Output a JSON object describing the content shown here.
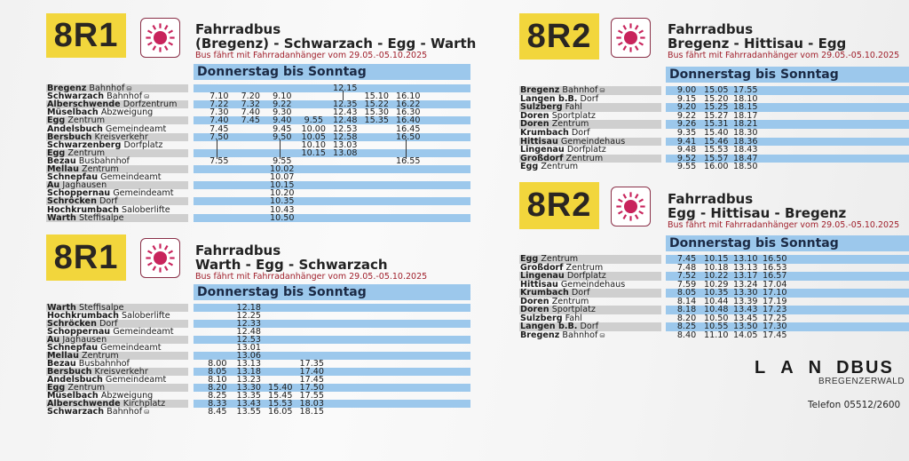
{
  "colors": {
    "badge": "#f2d63c",
    "row_blue": "#9cc8ec",
    "row_gray": "#cfcfcf",
    "subtitle_red": "#a0202c",
    "icon_sun": "#c8245c"
  },
  "sections": [
    {
      "badge": "8R1",
      "icon": "sun-icon",
      "title": "Fahrradbus",
      "route": "(Bregenz) - Schwarzach - Egg - Warth",
      "note": "Bus fährt mit Fahrradanhänger vom 29.05.-05.10.2025",
      "days": "Donnerstag bis Sonntag",
      "rows": [
        {
          "b": "Bregenz",
          "n": "Bahnhof",
          "bike": true,
          "t": [
            "",
            "",
            "",
            "",
            "12.15",
            "",
            ""
          ]
        },
        {
          "b": "Schwarzach",
          "n": "Bahnhof",
          "bike": true,
          "t": [
            "7.10",
            "7.20",
            "9.10",
            "",
            "|",
            "15.10",
            "16.10"
          ]
        },
        {
          "b": "Alberschwende",
          "n": "Dorfzentrum",
          "t": [
            "7.22",
            "7.32",
            "9.22",
            "",
            "12.35",
            "15.22",
            "16.22"
          ]
        },
        {
          "b": "Müselbach",
          "n": "Abzweigung",
          "t": [
            "7.30",
            "7.40",
            "9.30",
            "",
            "12.43",
            "15.30",
            "16.30"
          ]
        },
        {
          "b": "Egg",
          "n": "Zentrum",
          "t": [
            "7.40",
            "7.45",
            "9.40",
            "9.55",
            "12.48",
            "15.35",
            "16.40"
          ]
        },
        {
          "b": "Andelsbuch",
          "n": "Gemeindeamt",
          "t": [
            "7.45",
            "",
            "9.45",
            "10.00",
            "12.53",
            "",
            "16.45"
          ]
        },
        {
          "b": "Bersbuch",
          "n": "Kreisverkehr",
          "t": [
            "7.50",
            "",
            "9.50",
            "10.05",
            "12.58",
            "",
            "16.50"
          ]
        },
        {
          "b": "Schwarzenberg",
          "n": "Dorfplatz",
          "t": [
            "|",
            "",
            "|",
            "10.10",
            "13.03",
            "",
            "|"
          ]
        },
        {
          "b": "Egg",
          "n": "Zentrum",
          "t": [
            "|",
            "",
            "|",
            "10.15",
            "13.08",
            "",
            "|"
          ]
        },
        {
          "b": "Bezau",
          "n": "Busbahnhof",
          "t": [
            "7.55",
            "",
            "9.55",
            "",
            "",
            "",
            "16.55"
          ]
        },
        {
          "b": "Mellau",
          "n": "Zentrum",
          "t": [
            "",
            "",
            "10.02",
            "",
            "",
            "",
            ""
          ]
        },
        {
          "b": "Schnepfau",
          "n": "Gemeindeamt",
          "t": [
            "",
            "",
            "10.07",
            "",
            "",
            "",
            ""
          ]
        },
        {
          "b": "Au",
          "n": "Jaghausen",
          "t": [
            "",
            "",
            "10.15",
            "",
            "",
            "",
            ""
          ]
        },
        {
          "b": "Schoppernau",
          "n": "Gemeindeamt",
          "t": [
            "",
            "",
            "10.20",
            "",
            "",
            "",
            ""
          ]
        },
        {
          "b": "Schröcken",
          "n": "Dorf",
          "t": [
            "",
            "",
            "10.35",
            "",
            "",
            "",
            ""
          ]
        },
        {
          "b": "Hochkrumbach",
          "n": "Saloberlifte",
          "t": [
            "",
            "",
            "10.43",
            "",
            "",
            "",
            ""
          ]
        },
        {
          "b": "Warth",
          "n": "Steffisalpe",
          "t": [
            "",
            "",
            "10.50",
            "",
            "",
            "",
            ""
          ]
        }
      ]
    },
    {
      "badge": "8R1",
      "icon": "sun-icon",
      "title": "Fahrradbus",
      "route": "Warth - Egg - Schwarzach",
      "note": "Bus fährt mit Fahrradanhänger vom 29.05.-05.10.2025",
      "days": "Donnerstag bis Sonntag",
      "rows": [
        {
          "b": "Warth",
          "n": "Steffisalpe",
          "t": [
            "",
            "12.18",
            "",
            ""
          ]
        },
        {
          "b": "Hochkrumbach",
          "n": "Saloberlifte",
          "t": [
            "",
            "12.25",
            "",
            ""
          ]
        },
        {
          "b": "Schröcken",
          "n": "Dorf",
          "t": [
            "",
            "12.33",
            "",
            ""
          ]
        },
        {
          "b": "Schoppernau",
          "n": "Gemeindeamt",
          "t": [
            "",
            "12.48",
            "",
            ""
          ]
        },
        {
          "b": "Au",
          "n": "Jaghausen",
          "t": [
            "",
            "12.53",
            "",
            ""
          ]
        },
        {
          "b": "Schnepfau",
          "n": "Gemeindeamt",
          "t": [
            "",
            "13.01",
            "",
            ""
          ]
        },
        {
          "b": "Mellau",
          "n": "Zentrum",
          "t": [
            "",
            "13.06",
            "",
            ""
          ]
        },
        {
          "b": "Bezau",
          "n": "Busbahnhof",
          "t": [
            "8.00",
            "13.13",
            "",
            "17.35"
          ]
        },
        {
          "b": "Bersbuch",
          "n": "Kreisverkehr",
          "t": [
            "8.05",
            "13.18",
            "",
            "17.40"
          ]
        },
        {
          "b": "Andelsbuch",
          "n": "Gemeindeamt",
          "t": [
            "8.10",
            "13.23",
            "",
            "17.45"
          ]
        },
        {
          "b": "Egg",
          "n": "Zentrum",
          "t": [
            "8.20",
            "13.30",
            "15.40",
            "17.50"
          ]
        },
        {
          "b": "Müselbach",
          "n": "Abzweigung",
          "t": [
            "8.25",
            "13.35",
            "15.45",
            "17.55"
          ]
        },
        {
          "b": "Alberschwende",
          "n": "Kirchplatz",
          "t": [
            "8.33",
            "13.43",
            "15.53",
            "18.03"
          ]
        },
        {
          "b": "Schwarzach",
          "n": "Bahnhof",
          "bike": true,
          "t": [
            "8.45",
            "13.55",
            "16.05",
            "18.15"
          ]
        }
      ]
    },
    {
      "badge": "8R2",
      "icon": "sun-icon",
      "title": "Fahrradbus",
      "route": "Bregenz - Hittisau - Egg",
      "note": "Bus fährt mit Fahrradanhänger vom 29.05.-05.10.2025",
      "days": "Donnerstag bis Sonntag",
      "rows": [
        {
          "b": "Bregenz",
          "n": "Bahnhof",
          "bike": true,
          "t": [
            "9.00",
            "15.05",
            "17.55"
          ]
        },
        {
          "b": "Langen b.B.",
          "n": "Dorf",
          "t": [
            "9.15",
            "15.20",
            "18.10"
          ]
        },
        {
          "b": "Sulzberg",
          "n": "Fahl",
          "t": [
            "9.20",
            "15.25",
            "18.15"
          ]
        },
        {
          "b": "Doren",
          "n": "Sportplatz",
          "t": [
            "9.22",
            "15.27",
            "18.17"
          ]
        },
        {
          "b": "Doren",
          "n": "Zentrum",
          "t": [
            "9.26",
            "15.31",
            "18.21"
          ]
        },
        {
          "b": "Krumbach",
          "n": "Dorf",
          "t": [
            "9.35",
            "15.40",
            "18.30"
          ]
        },
        {
          "b": "Hittisau",
          "n": "Gemeindehaus",
          "t": [
            "9.41",
            "15.46",
            "18.36"
          ]
        },
        {
          "b": "Lingenau",
          "n": "Dorfplatz",
          "t": [
            "9.48",
            "15.53",
            "18.43"
          ]
        },
        {
          "b": "Großdorf",
          "n": "Zentrum",
          "t": [
            "9.52",
            "15.57",
            "18.47"
          ]
        },
        {
          "b": "Egg",
          "n": "Zentrum",
          "t": [
            "9.55",
            "16.00",
            "18.50"
          ]
        }
      ]
    },
    {
      "badge": "8R2",
      "icon": "sun-icon",
      "title": "Fahrradbus",
      "route": "Egg - Hittisau - Bregenz",
      "note": "Bus fährt mit Fahrradanhänger vom 29.05.-05.10.2025",
      "days": "Donnerstag bis Sonntag",
      "rows": [
        {
          "b": "Egg",
          "n": "Zentrum",
          "t": [
            "7.45",
            "10.15",
            "13.10",
            "16.50"
          ]
        },
        {
          "b": "Großdorf",
          "n": "Zentrum",
          "t": [
            "7.48",
            "10.18",
            "13.13",
            "16.53"
          ]
        },
        {
          "b": "Lingenau",
          "n": "Dorfplatz",
          "t": [
            "7.52",
            "10.22",
            "13.17",
            "16.57"
          ]
        },
        {
          "b": "Hittisau",
          "n": "Gemeindehaus",
          "t": [
            "7.59",
            "10.29",
            "13.24",
            "17.04"
          ]
        },
        {
          "b": "Krumbach",
          "n": "Dorf",
          "t": [
            "8.05",
            "10.35",
            "13.30",
            "17.10"
          ]
        },
        {
          "b": "Doren",
          "n": "Zentrum",
          "t": [
            "8.14",
            "10.44",
            "13.39",
            "17.19"
          ]
        },
        {
          "b": "Doren",
          "n": "Sportplatz",
          "t": [
            "8.18",
            "10.48",
            "13.43",
            "17.23"
          ]
        },
        {
          "b": "Sulzberg",
          "n": "Fahl",
          "t": [
            "8.20",
            "10.50",
            "13.45",
            "17.25"
          ]
        },
        {
          "b": "Langen b.B.",
          "n": "Dorf",
          "t": [
            "8.25",
            "10.55",
            "13.50",
            "17.30"
          ]
        },
        {
          "b": "Bregenz",
          "n": "Bahnhof",
          "bike": true,
          "t": [
            "8.40",
            "11.10",
            "14.05",
            "17.45"
          ]
        }
      ]
    }
  ],
  "footer": {
    "logo_main": "LANDBUS",
    "logo_sub": "BREGENZERWALD",
    "phone": "Telefon 05512/2600"
  }
}
